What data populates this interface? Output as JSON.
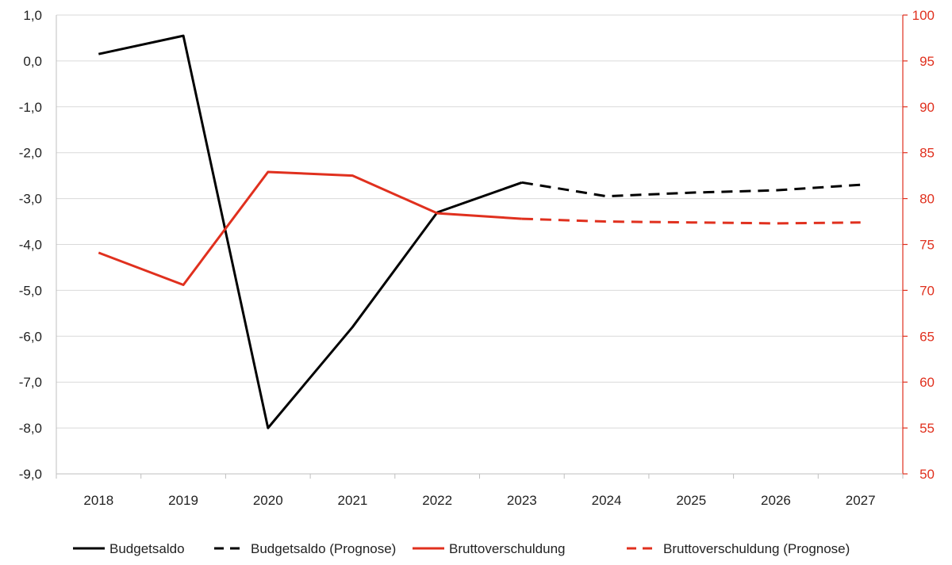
{
  "chart_data": {
    "type": "line",
    "categories": [
      "2018",
      "2019",
      "2020",
      "2021",
      "2022",
      "2023",
      "2024",
      "2025",
      "2026",
      "2027"
    ],
    "left_axis": {
      "ylim": [
        -9,
        1
      ],
      "ticks": [
        "1,0",
        "0,0",
        "-1,0",
        "-2,0",
        "-3,0",
        "-4,0",
        "-5,0",
        "-6,0",
        "-7,0",
        "-8,0",
        "-9,0"
      ],
      "tick_values": [
        1,
        0,
        -1,
        -2,
        -3,
        -4,
        -5,
        -6,
        -7,
        -8,
        -9
      ]
    },
    "right_axis": {
      "ylim": [
        50,
        100
      ],
      "ticks": [
        "100",
        "95",
        "90",
        "85",
        "80",
        "75",
        "70",
        "65",
        "60",
        "55",
        "50"
      ],
      "tick_values": [
        100,
        95,
        90,
        85,
        80,
        75,
        70,
        65,
        60,
        55,
        50
      ]
    },
    "grid": "horizontal",
    "legend_position": "bottom",
    "series": [
      {
        "name": "Budgetsaldo",
        "axis": "left",
        "style": "solid",
        "color": "#000000",
        "values": [
          0.15,
          0.55,
          -8.0,
          -5.8,
          -3.3,
          -2.65,
          null,
          null,
          null,
          null
        ]
      },
      {
        "name": "Budgetsaldo (Prognose)",
        "axis": "left",
        "style": "dashed",
        "color": "#000000",
        "values": [
          null,
          null,
          null,
          null,
          null,
          -2.65,
          -2.95,
          -2.87,
          -2.82,
          -2.7
        ]
      },
      {
        "name": "Bruttoverschuldung",
        "axis": "right",
        "style": "solid",
        "color": "#e0301e",
        "values": [
          74.1,
          70.6,
          82.9,
          82.5,
          78.4,
          77.8,
          null,
          null,
          null,
          null
        ]
      },
      {
        "name": "Bruttoverschuldung (Prognose)",
        "axis": "right",
        "style": "dashed",
        "color": "#e0301e",
        "values": [
          null,
          null,
          null,
          null,
          null,
          77.8,
          77.5,
          77.4,
          77.3,
          77.4
        ]
      }
    ]
  }
}
